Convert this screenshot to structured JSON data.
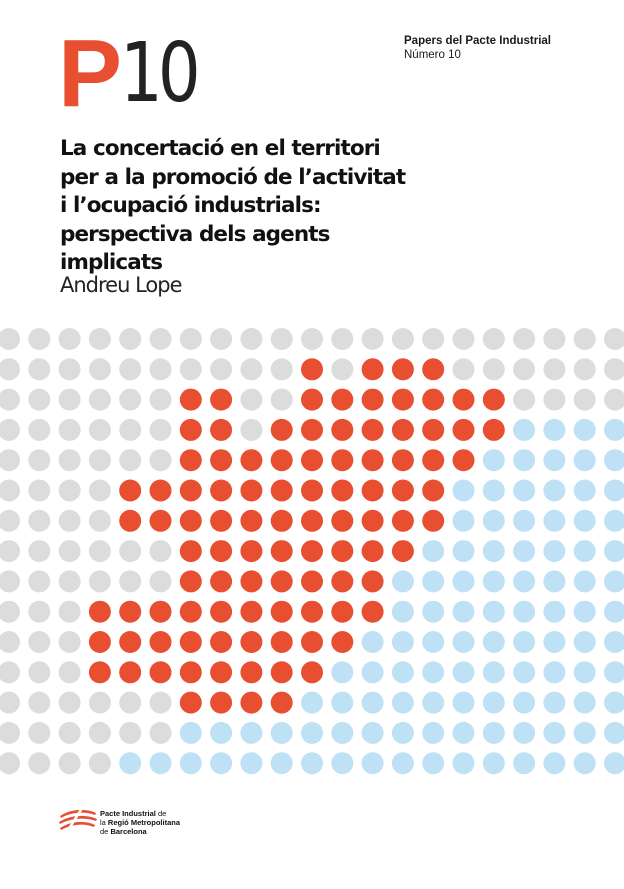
{
  "logo": {
    "letter": "P",
    "number": "10"
  },
  "series": {
    "name": "Papers del Pacte Industrial",
    "issue": "Número 10"
  },
  "title_lines": [
    "La concertació en el territori",
    "per a la promoció de l’activitat",
    "i l’ocupació industrials:",
    "perspectiva dels agents",
    "implicats"
  ],
  "author": "Andreu Lope",
  "publisher": {
    "line1_bold": "Pacte Industrial",
    "line1_rest": " de",
    "line2_pre": "la ",
    "line2_bold": "Regió Metropolitana",
    "line3_pre": "de ",
    "line3_bold": "Barcelona"
  },
  "colors": {
    "brand_red": "#e84f31",
    "grey_dot": "#dcdcdc",
    "blue_dot": "#bfe1f5",
    "text_dark": "#111111"
  },
  "dot_pattern": [
    "GGGGGGGGGGGGGGGGGGGGG",
    "GGGGGGGGGGRGRRRGGGGGG",
    "GGGGGGRRGGRRRRRRRGGGG",
    "GGGGGGRRGRRRRRRRRBBBB",
    "GGGGGGRRRRRRRRRRBBBBB",
    "GGGGRRRRRRRRRRRBBBBBB",
    "GGGGRRRRRRRRRRRBBBBBB",
    "GGGGGGRRRRRRRRBBBBBBB",
    "GGGGGGRRRRRRRBBBBBBBB",
    "GGGRRRRRRRRRRBBBBBBBB",
    "GGGRRRRRRRRRBBBBBBBBB",
    "GGGRRRRRRRRBBBBBBBBBB",
    "GGGGGGRRRRBBBBBBBBBBB",
    "GGGGGGBBBBBBBBBBBBBBB",
    "GGGGBBBBBBBBBBBBBBBBB"
  ]
}
